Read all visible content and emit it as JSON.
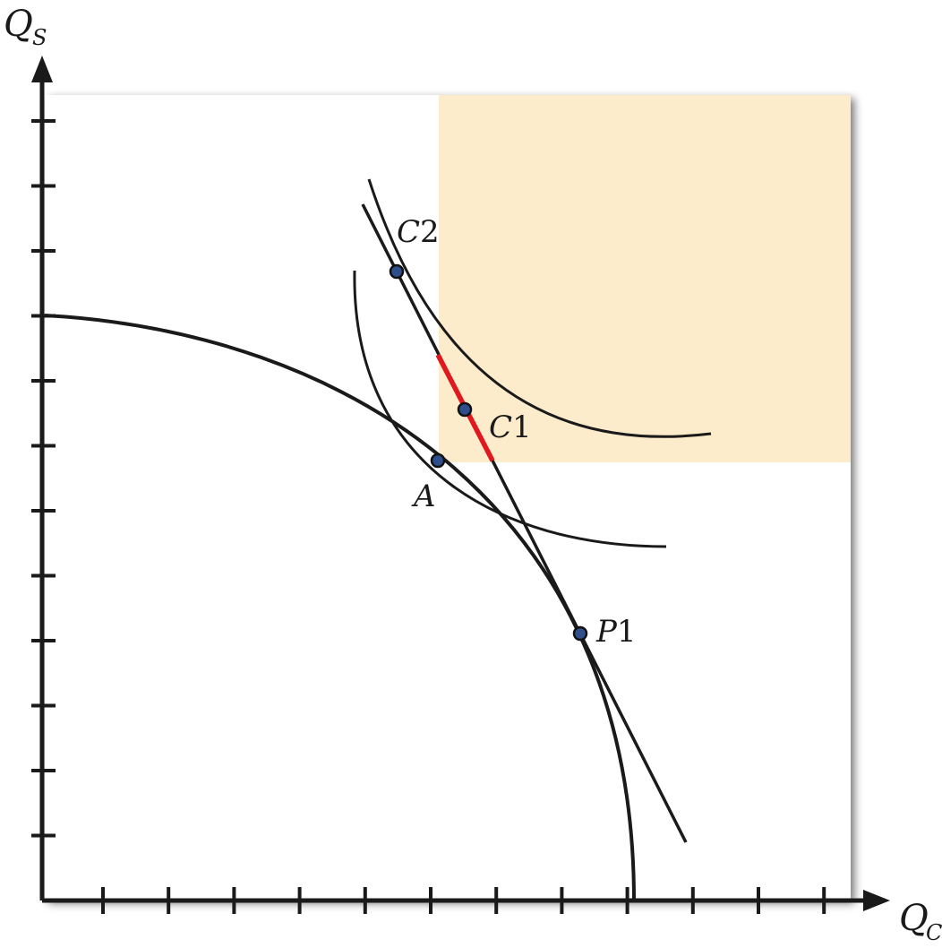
{
  "axes": {
    "y_label": "Q",
    "y_sub": "S",
    "x_label": "Q",
    "x_sub": "C"
  },
  "points": {
    "c2": {
      "letter": "C",
      "number": "2"
    },
    "c1": {
      "letter": "C",
      "number": "1"
    },
    "a": {
      "letter": "A"
    },
    "p1": {
      "letter": "P",
      "number": "1"
    }
  },
  "colors": {
    "shaded_region": "#fdeccb",
    "segment": "#e0191e",
    "point_fill": "#2e4e8c",
    "ink": "#1a1a1a",
    "panel_shadow": "#9a9a9a"
  }
}
